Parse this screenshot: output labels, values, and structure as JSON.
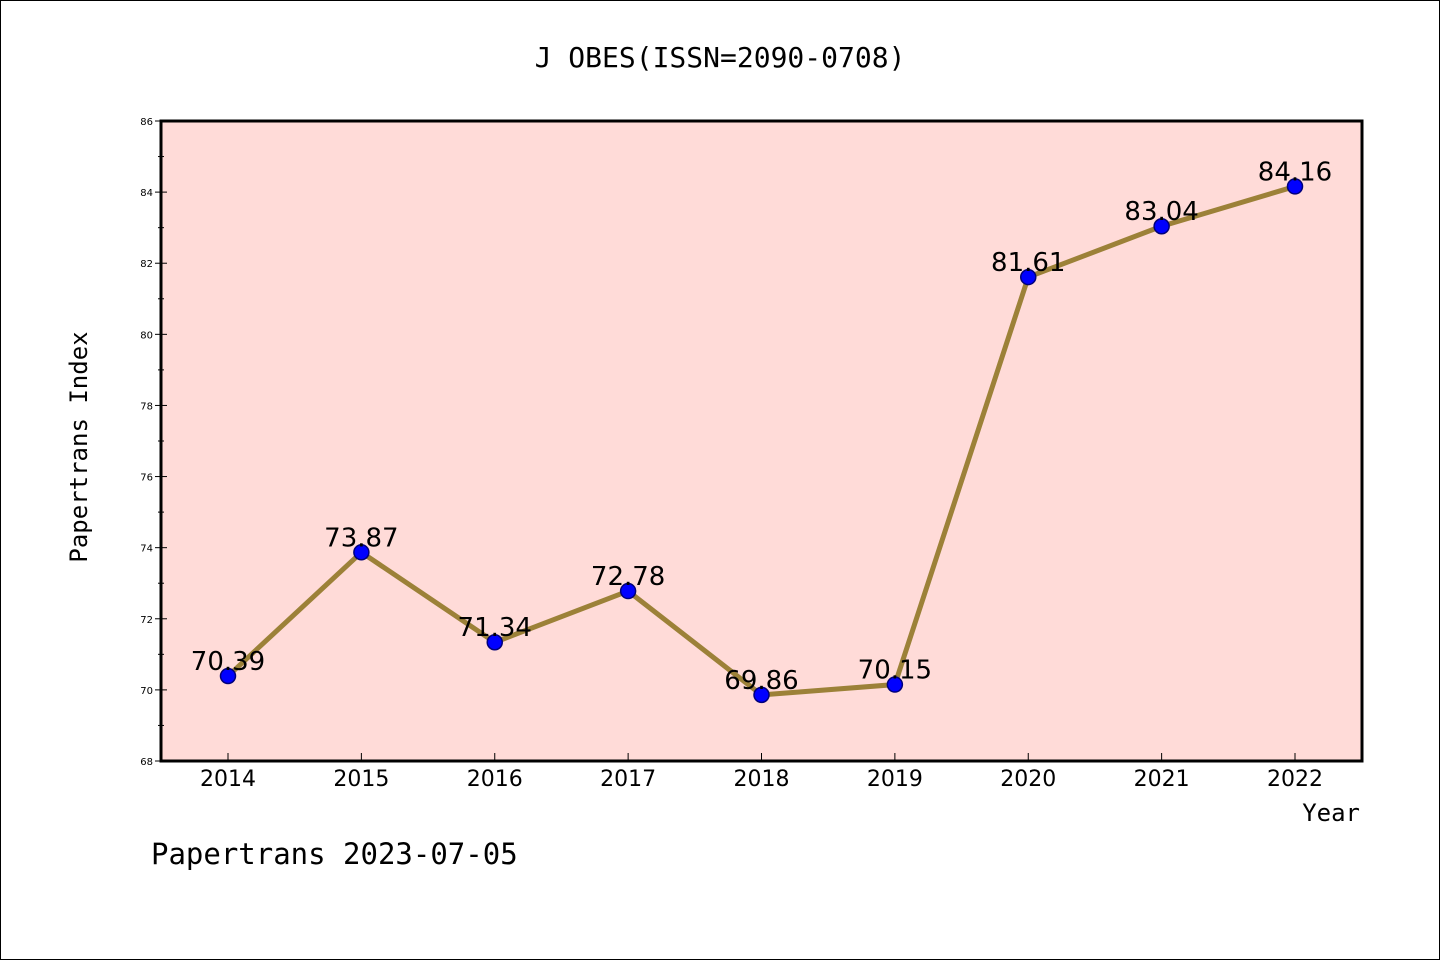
{
  "chart_data": {
    "type": "line",
    "title": "J OBES(ISSN=2090-0708)",
    "xlabel": "Year",
    "ylabel": "Papertrans Index",
    "categories": [
      "2014",
      "2015",
      "2016",
      "2017",
      "2018",
      "2019",
      "2020",
      "2021",
      "2022"
    ],
    "values": [
      70.39,
      73.87,
      71.34,
      72.78,
      69.86,
      70.15,
      81.61,
      83.04,
      84.16
    ],
    "data_labels": [
      "70.39",
      "73.87",
      "71.34",
      "72.78",
      "69.86",
      "70.15",
      "81.61",
      "83.04",
      "84.16"
    ],
    "ylim": [
      68,
      86
    ],
    "yticks": [
      "68",
      "70",
      "72",
      "74",
      "76",
      "78",
      "80",
      "82",
      "84",
      "86"
    ],
    "grid": false,
    "colors": {
      "plot_background": "#FFDBD8",
      "line": "#9C8138",
      "marker": "#0000FF",
      "marker_edge": "#00007A"
    }
  },
  "footer": {
    "text": "Papertrans 2023-07-05"
  }
}
